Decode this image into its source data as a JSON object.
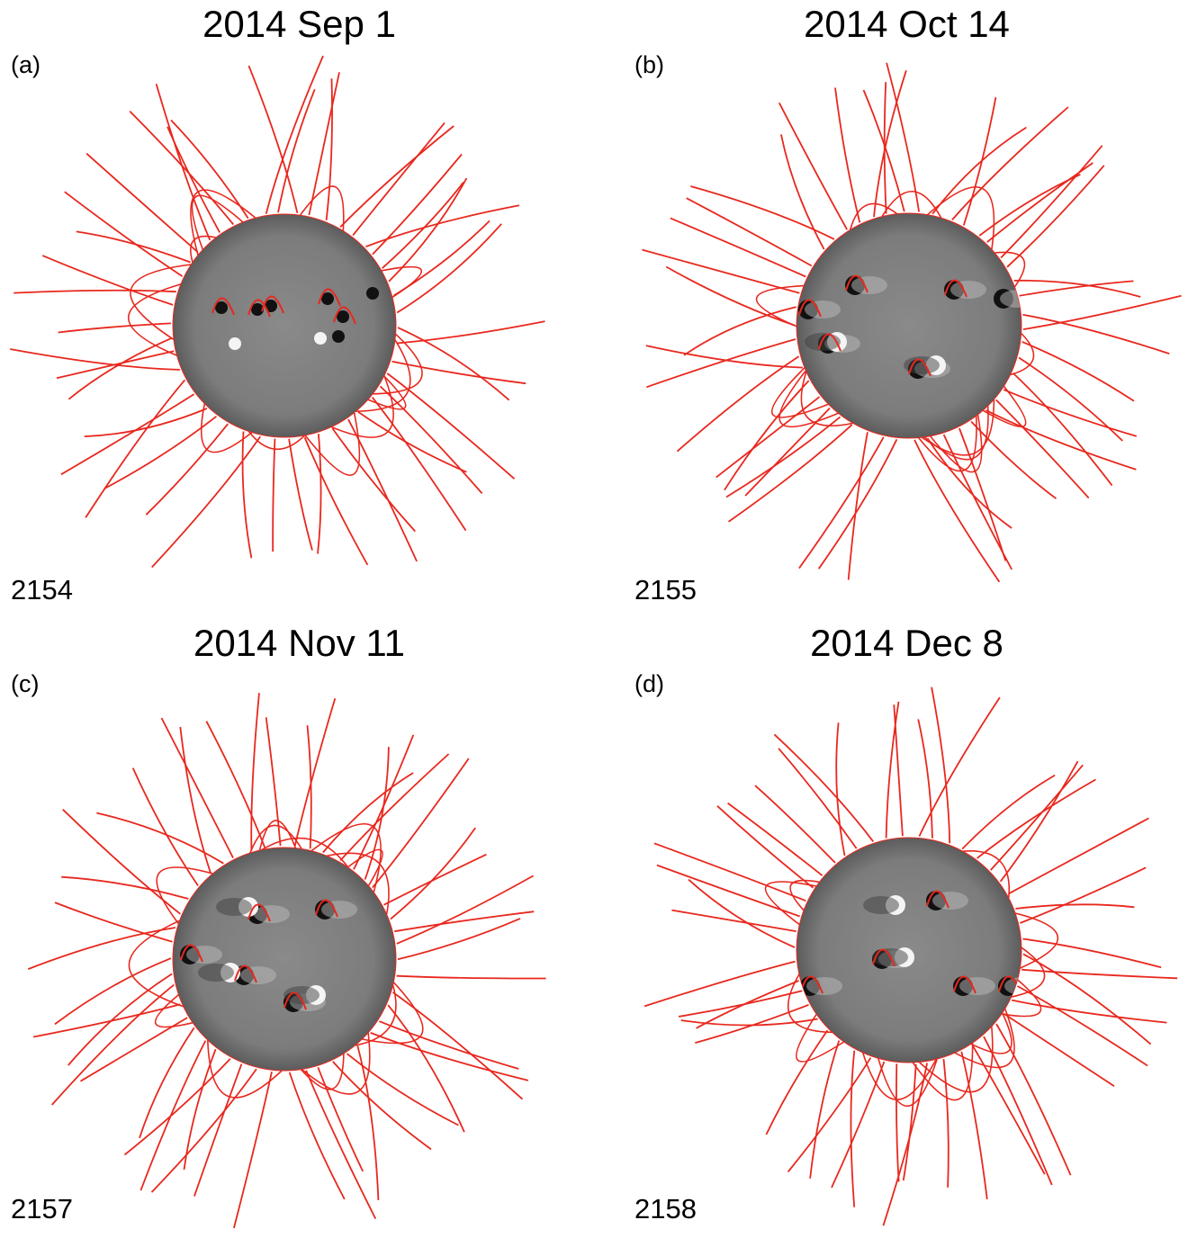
{
  "panels": [
    {
      "title": "2014 Sep 1",
      "tag": "(a)",
      "rotation": "2154"
    },
    {
      "title": "2014 Oct 14",
      "tag": "(b)",
      "rotation": "2155"
    },
    {
      "title": "2014 Nov 11",
      "tag": "(c)",
      "rotation": "2157"
    },
    {
      "title": "2014 Dec 8",
      "tag": "(d)",
      "rotation": "2158"
    }
  ],
  "colors": {
    "field_line": "#e8281e",
    "disk": "#7f7f7f",
    "background": "#ffffff"
  }
}
